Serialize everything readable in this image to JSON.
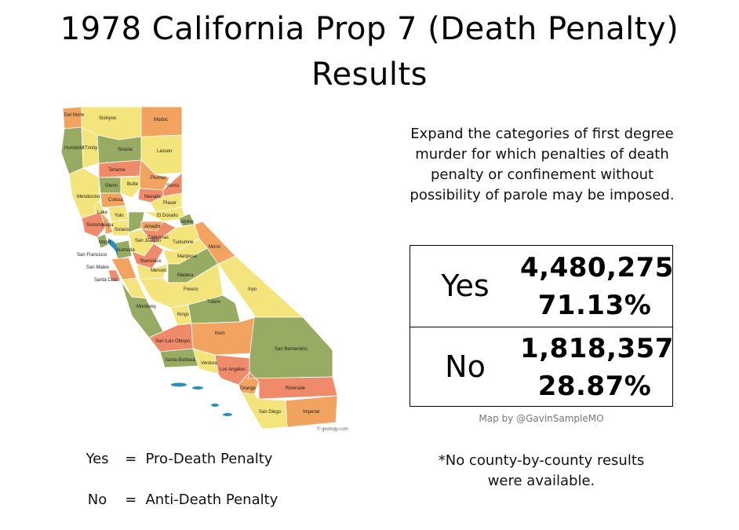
{
  "title": {
    "line1": "1978 California Prop 7 (Death Penalty)",
    "line2": "Results"
  },
  "description": "Expand the categories of first degree murder for which penalties of death penalty or confinement without possibility of parole may be imposed.",
  "results": {
    "yes": {
      "label": "Yes",
      "votes": "4,480,275",
      "percent": "71.13%"
    },
    "no": {
      "label": "No",
      "votes": "1,818,357",
      "percent": "28.87%"
    }
  },
  "credit": "Map by @GavinSampleMO",
  "legend": [
    {
      "key": "Yes",
      "eq": "=",
      "meaning": "Pro-Death Penalty"
    },
    {
      "key": "No",
      "eq": "=",
      "meaning": "Anti-Death Penalty"
    }
  ],
  "note_line1": "*No county-by-county results",
  "note_line2": "were available.",
  "map": {
    "watermark": "© geology.com",
    "colors": {
      "green": "#98ab63",
      "yellow": "#f3e57c",
      "orange": "#f1a35f",
      "salmon": "#ef8a6b",
      "water": "#2b8fb8"
    },
    "counties": [
      "Del Norte",
      "Siskiyou",
      "Modoc",
      "Humboldt",
      "Trinity",
      "Shasta",
      "Lassen",
      "Tehama",
      "Plumas",
      "Glenn",
      "Butte",
      "Sierra",
      "Mendocino",
      "Colusa",
      "Nevada",
      "Placer",
      "Lake",
      "Yolo",
      "El Dorado",
      "Alpine",
      "Sonoma",
      "Napa",
      "Solano",
      "Tuolumne",
      "Mono",
      "San Francisco",
      "San Mateo",
      "Santa Cruz",
      "Mariposa",
      "Merced",
      "Madera",
      "Inyo",
      "Fresno",
      "Tulare",
      "Monterey",
      "Kings",
      "San Luis Obispo",
      "Kern",
      "San Bernardino",
      "Santa Barbara",
      "Ventura",
      "Los Angeles",
      "Orange",
      "Riverside",
      "San Diego",
      "Imperial",
      "San Joaquin",
      "Amador",
      "Calaveras",
      "Alameda",
      "Stanislaus",
      "Marin"
    ]
  }
}
